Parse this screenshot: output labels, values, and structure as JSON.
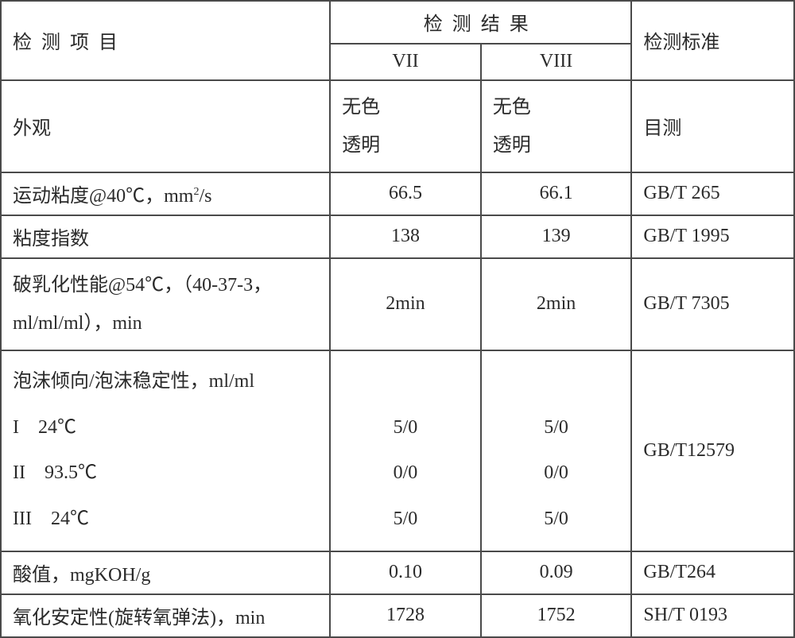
{
  "table": {
    "border_color": "#4a4a4a",
    "background_color": "#ffffff",
    "text_color": "#2a2a2a",
    "base_fontsize": 24,
    "header": {
      "col_item": "检测项目",
      "col_results": "检测结果",
      "col_std": "检测标准",
      "sub_vii": "VII",
      "sub_viii": "VIII"
    },
    "col_widths_percent": [
      41.5,
      19,
      19,
      20.5
    ],
    "rows": [
      {
        "item": "外观",
        "vii_line1": "无色",
        "vii_line2": "透明",
        "viii_line1": "无色",
        "viii_line2": "透明",
        "std": "目测"
      },
      {
        "item_prefix": "运动粘度@40℃，mm",
        "item_sup": "2",
        "item_suffix": "/s",
        "vii": "66.5",
        "viii": "66.1",
        "std": "GB/T 265"
      },
      {
        "item": "粘度指数",
        "vii": "138",
        "viii": "139",
        "std": "GB/T 1995"
      },
      {
        "item_line1": "破乳化性能@54℃，（40-37-3，",
        "item_line2": "ml/ml/ml），min",
        "vii": "2min",
        "viii": "2min",
        "std": "GB/T 7305"
      },
      {
        "item_line1": "泡沫倾向/泡沫稳定性，ml/ml",
        "item_line2": "I　24℃",
        "item_line3": "II　93.5℃",
        "item_line4": "III　24℃",
        "vii_line1": "",
        "vii_line2": "5/0",
        "vii_line3": "0/0",
        "vii_line4": "5/0",
        "viii_line1": "",
        "viii_line2": "5/0",
        "viii_line3": "0/0",
        "viii_line4": "5/0",
        "std": "GB/T12579"
      },
      {
        "item": "酸值，mgKOH/g",
        "vii": "0.10",
        "viii": "0.09",
        "std": "GB/T264"
      },
      {
        "item": "氧化安定性(旋转氧弹法)，min",
        "vii": "1728",
        "viii": "1752",
        "std": "SH/T 0193"
      }
    ]
  }
}
